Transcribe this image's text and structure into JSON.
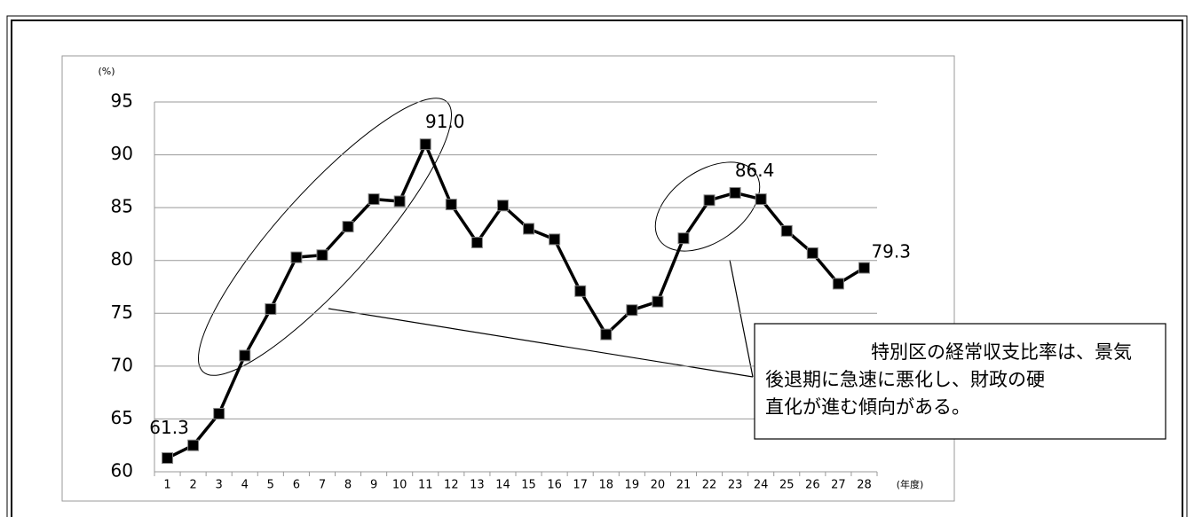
{
  "chart_data": {
    "type": "line",
    "y_axis_label": "(%)",
    "x_axis_label": "(年度)",
    "categories": [
      "1",
      "2",
      "3",
      "4",
      "5",
      "6",
      "7",
      "8",
      "9",
      "10",
      "11",
      "12",
      "13",
      "14",
      "15",
      "16",
      "17",
      "18",
      "19",
      "20",
      "21",
      "22",
      "23",
      "24",
      "25",
      "26",
      "27",
      "28"
    ],
    "series": [
      {
        "color": "#000000",
        "values": [
          61.3,
          62.5,
          65.5,
          71.0,
          75.4,
          80.3,
          80.5,
          83.2,
          85.8,
          85.6,
          91.0,
          85.3,
          81.7,
          85.2,
          83.0,
          82.0,
          77.1,
          73.0,
          75.3,
          76.1,
          82.1,
          85.7,
          86.4,
          85.8,
          82.8,
          80.7,
          77.8,
          79.3
        ],
        "value_labels": [
          "61.3",
          null,
          null,
          null,
          null,
          null,
          null,
          null,
          null,
          null,
          "91.0",
          null,
          null,
          null,
          null,
          null,
          null,
          null,
          null,
          null,
          null,
          null,
          "86.4",
          null,
          null,
          null,
          null,
          "79.3"
        ]
      }
    ],
    "ylim": [
      60,
      95
    ],
    "yticks": [
      60,
      65,
      70,
      75,
      80,
      85,
      90,
      95
    ],
    "grid": true,
    "annotation": [
      "特別区の経常収支比率は、景気",
      "後退期に急速に悪化し、財政の硬",
      "直化が進む傾向がある。"
    ]
  }
}
